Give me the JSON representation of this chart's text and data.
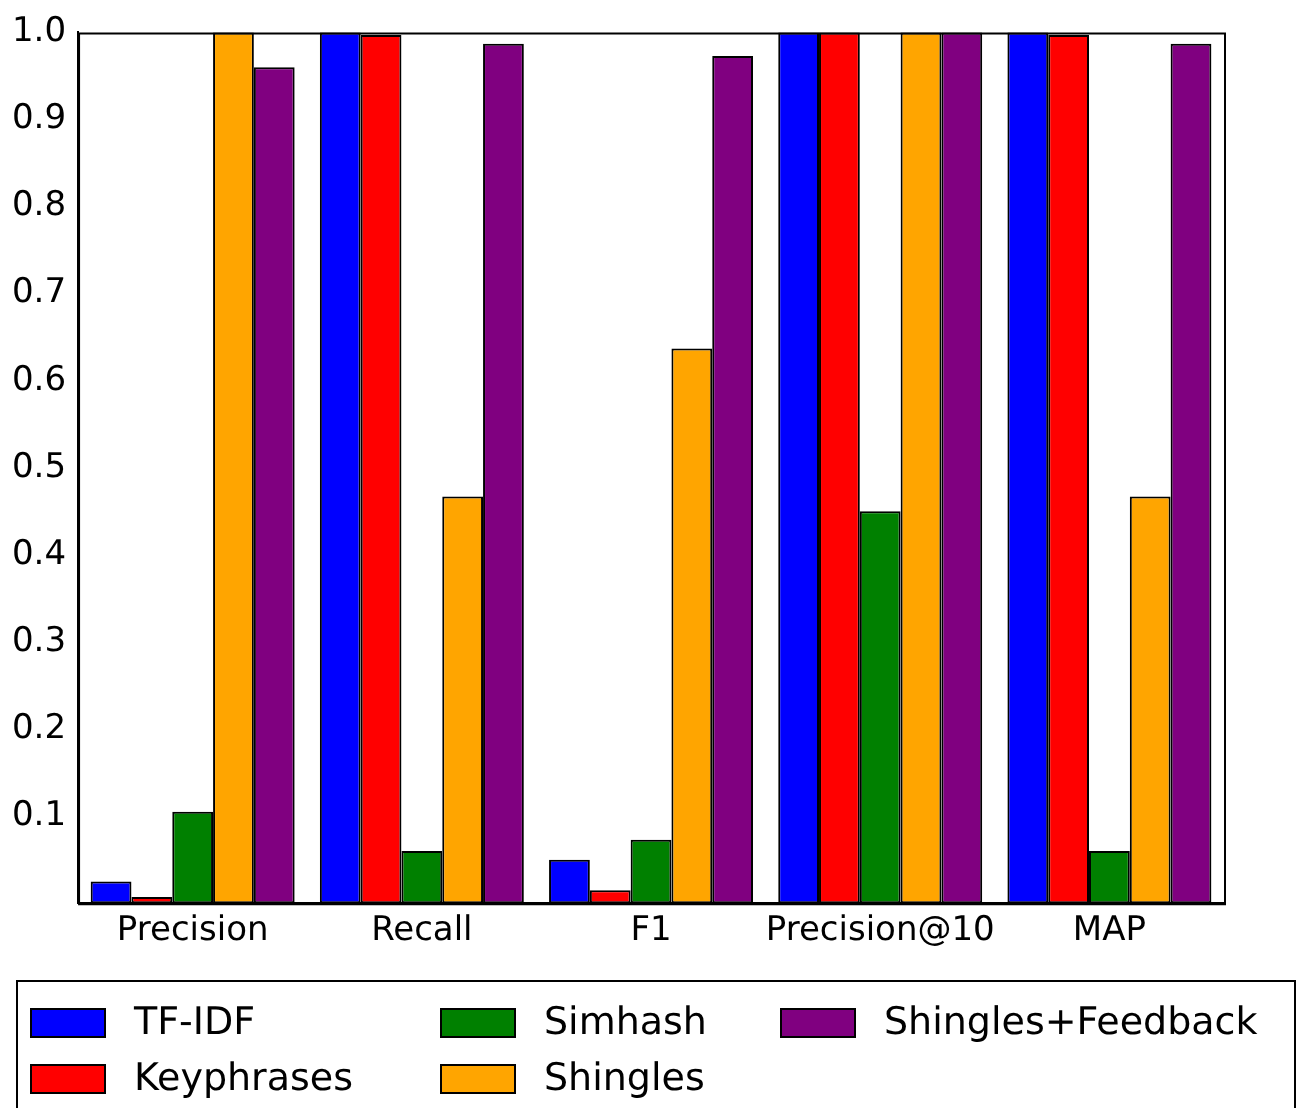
{
  "chart_data": {
    "type": "bar",
    "categories": [
      "Precision",
      "Recall",
      "F1",
      "Precision@10",
      "MAP"
    ],
    "series": [
      {
        "name": "TF-IDF",
        "color": "#0000ff",
        "values": [
          0.025,
          1.0,
          0.05,
          1.0,
          1.0
        ]
      },
      {
        "name": "Keyphrases",
        "color": "#ff0000",
        "values": [
          0.007,
          0.997,
          0.015,
          1.0,
          0.997
        ]
      },
      {
        "name": "Simhash",
        "color": "#008000",
        "values": [
          0.105,
          0.06,
          0.073,
          0.45,
          0.06
        ]
      },
      {
        "name": "Shingles",
        "color": "#ffa500",
        "values": [
          1.0,
          0.467,
          0.637,
          1.0,
          0.467
        ]
      },
      {
        "name": "Shingles+Feedback",
        "color": "#800080",
        "values": [
          0.96,
          0.987,
          0.973,
          1.0,
          0.987
        ]
      }
    ],
    "ylim": [
      0,
      1.0
    ],
    "yticks": [
      0.1,
      0.2,
      0.3,
      0.4,
      0.5,
      0.6,
      0.7,
      0.8,
      0.9,
      {
        "value": 1.0,
        "label": "1.0"
      }
    ],
    "grid": false,
    "legend": "bottom"
  }
}
